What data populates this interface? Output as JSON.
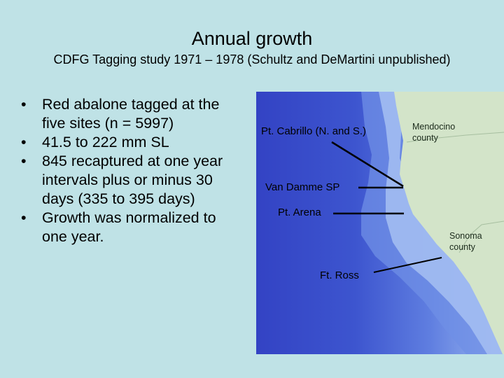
{
  "slide": {
    "title": "Annual growth",
    "subtitle": "CDFG Tagging study 1971 – 1978 (Schultz and DeMartini unpublished)",
    "bullets": [
      "Red abalone tagged at the five sites (n = 5997)",
      "41.5 to 222 mm SL",
      "845 recaptured at one year intervals plus or minus 30 days (335 to 395 days)",
      "Growth was normalized to one year."
    ],
    "bullet_glyph": "•"
  },
  "map": {
    "site_labels": {
      "cabrillo": "Pt. Cabrillo (N. and S.)",
      "van_damme": "Van Damme SP",
      "arena": "Pt. Arena",
      "ross": "Ft. Ross"
    },
    "county_labels": {
      "mendocino_1": "Mendocino",
      "mendocino_2": "county",
      "sonoma_1": "Sonoma",
      "sonoma_2": "county"
    },
    "colors": {
      "background": "#bfe2e6",
      "land": "#cfe1c6",
      "deep_ocean": "#2f3fbf",
      "shallow_ocean": "#a9c4f2",
      "leader_line": "#000000"
    }
  }
}
